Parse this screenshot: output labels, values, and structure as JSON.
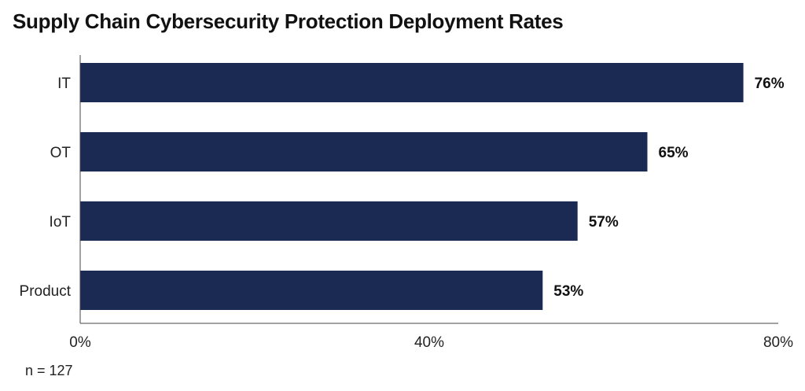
{
  "chart_data": {
    "type": "bar",
    "orientation": "horizontal",
    "title": "Supply Chain Cybersecurity Protection Deployment Rates",
    "categories": [
      "IT",
      "OT",
      "IoT",
      "Product"
    ],
    "values": [
      76,
      65,
      57,
      53
    ],
    "value_labels": [
      "76%",
      "65%",
      "57%",
      "53%"
    ],
    "x_ticks": [
      "0%",
      "40%",
      "80%"
    ],
    "x_tick_values": [
      0,
      40,
      80
    ],
    "xlim": [
      0,
      80
    ],
    "xlabel": "",
    "ylabel": "",
    "grid": false,
    "bar_color": "#1b2a52",
    "note": "n = 127"
  }
}
